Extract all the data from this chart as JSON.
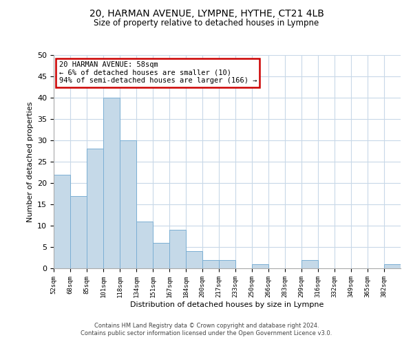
{
  "title1": "20, HARMAN AVENUE, LYMPNE, HYTHE, CT21 4LB",
  "title2": "Size of property relative to detached houses in Lympne",
  "xlabel": "Distribution of detached houses by size in Lympne",
  "ylabel": "Number of detached properties",
  "bin_labels": [
    "52sqm",
    "68sqm",
    "85sqm",
    "101sqm",
    "118sqm",
    "134sqm",
    "151sqm",
    "167sqm",
    "184sqm",
    "200sqm",
    "217sqm",
    "233sqm",
    "250sqm",
    "266sqm",
    "283sqm",
    "299sqm",
    "316sqm",
    "332sqm",
    "349sqm",
    "365sqm",
    "382sqm"
  ],
  "bar_values": [
    22,
    17,
    28,
    40,
    30,
    11,
    6,
    9,
    4,
    2,
    2,
    0,
    1,
    0,
    0,
    2,
    0,
    0,
    0,
    0,
    1
  ],
  "bar_color": "#c5d9e8",
  "bar_edge_color": "#7bafd4",
  "annotation_line1": "20 HARMAN AVENUE: 58sqm",
  "annotation_line2": "← 6% of detached houses are smaller (10)",
  "annotation_line3": "94% of semi-detached houses are larger (166) →",
  "annotation_box_color": "#ffffff",
  "annotation_box_edge_color": "#cc0000",
  "ylim": [
    0,
    50
  ],
  "footer1": "Contains HM Land Registry data © Crown copyright and database right 2024.",
  "footer2": "Contains public sector information licensed under the Open Government Licence v3.0.",
  "bg_color": "#ffffff",
  "grid_color": "#c8d8e8"
}
